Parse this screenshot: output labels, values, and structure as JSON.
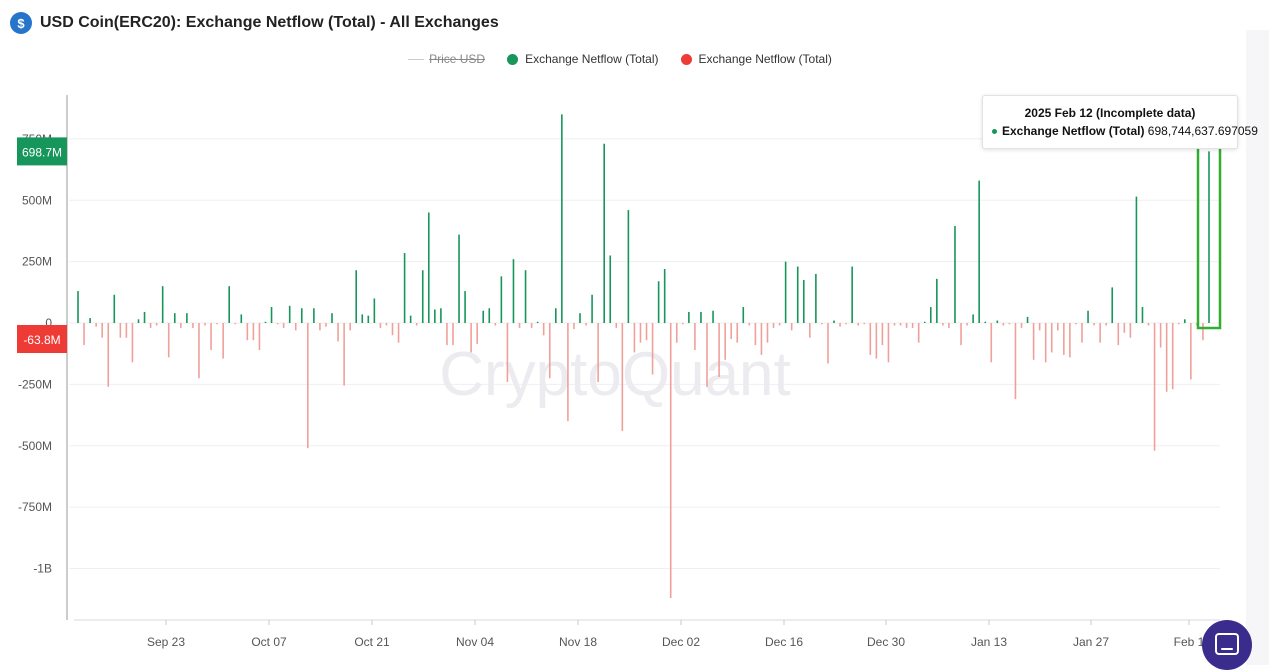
{
  "header": {
    "title": "USD Coin(ERC20): Exchange Netflow (Total) - All Exchanges",
    "logo_glyph": "$",
    "logo_color": "#2775ca"
  },
  "legend": {
    "items": [
      {
        "label": "Price USD",
        "color": "#cccccc",
        "disabled": true
      },
      {
        "label": "Exchange Netflow (Total)",
        "color": "#16965a"
      },
      {
        "label": "Exchange Netflow (Total)",
        "color": "#ef3b36"
      }
    ]
  },
  "tooltip": {
    "date": "2025 Feb 12",
    "note": "(Incomplete data)",
    "series_name": "Exchange Netflow (Total)",
    "value": "698,744,637.697059"
  },
  "watermark": "CryptoQuant",
  "current_labels": {
    "positive": "698.7M",
    "negative": "-63.8M"
  },
  "chart_data": {
    "type": "bar",
    "title": "USD Coin(ERC20): Exchange Netflow (Total) - All Exchanges",
    "x_start": "2024-09-10",
    "x_end": "2025-02-12",
    "x_ticks": [
      "Sep 23",
      "Oct 07",
      "Oct 21",
      "Nov 04",
      "Nov 18",
      "Dec 02",
      "Dec 16",
      "Dec 30",
      "Jan 13",
      "Jan 27",
      "Feb 1"
    ],
    "y_ticks": [
      "750M",
      "500M",
      "250M",
      "0",
      "-250M",
      "-500M",
      "-750M",
      "-1B"
    ],
    "y_tick_values": [
      750,
      500,
      250,
      0,
      -250,
      -500,
      -750,
      -1000
    ],
    "ylim": [
      -1200,
      800
    ],
    "unit": "M",
    "grid": true,
    "highlight_last": true,
    "positive_color": "#16965a",
    "negative_color": "#f0a09a",
    "series": [
      {
        "name": "Exchange Netflow (Total)",
        "values": [
          130,
          -90,
          20,
          -15,
          -60,
          -260,
          115,
          -60,
          -60,
          -160,
          15,
          45,
          -20,
          -10,
          150,
          -140,
          40,
          -20,
          40,
          -20,
          -225,
          -10,
          -110,
          -5,
          -145,
          150,
          -5,
          35,
          -70,
          -70,
          -110,
          5,
          65,
          -5,
          -20,
          70,
          -30,
          60,
          -510,
          60,
          -30,
          -15,
          40,
          -75,
          -255,
          -30,
          215,
          35,
          30,
          100,
          -20,
          -10,
          -50,
          -80,
          285,
          30,
          -10,
          215,
          450,
          55,
          60,
          -90,
          -90,
          360,
          130,
          -120,
          -85,
          50,
          60,
          -10,
          190,
          -240,
          260,
          -20,
          215,
          -20,
          5,
          -50,
          -225,
          60,
          850,
          -400,
          -25,
          40,
          -10,
          115,
          -240,
          730,
          275,
          -20,
          -440,
          460,
          -120,
          -80,
          -70,
          -210,
          170,
          220,
          -1120,
          -80,
          -5,
          45,
          -110,
          45,
          -260,
          50,
          -220,
          -150,
          -65,
          -80,
          65,
          -10,
          -90,
          -130,
          -80,
          -20,
          -10,
          250,
          -30,
          230,
          175,
          -60,
          200,
          -5,
          -165,
          10,
          -15,
          -5,
          230,
          -10,
          -5,
          -130,
          -145,
          -90,
          -160,
          -10,
          -10,
          -20,
          -20,
          -80,
          5,
          65,
          180,
          -10,
          -20,
          395,
          -90,
          -10,
          35,
          580,
          5,
          -160,
          10,
          -10,
          -5,
          -310,
          -20,
          25,
          -150,
          -30,
          -160,
          -120,
          -30,
          -130,
          -140,
          -5,
          -80,
          50,
          -10,
          -80,
          -10,
          145,
          -90,
          -40,
          -60,
          515,
          65,
          -10,
          -520,
          -100,
          -280,
          -270,
          -5,
          15,
          -230,
          -10,
          -70,
          699
        ]
      }
    ]
  }
}
